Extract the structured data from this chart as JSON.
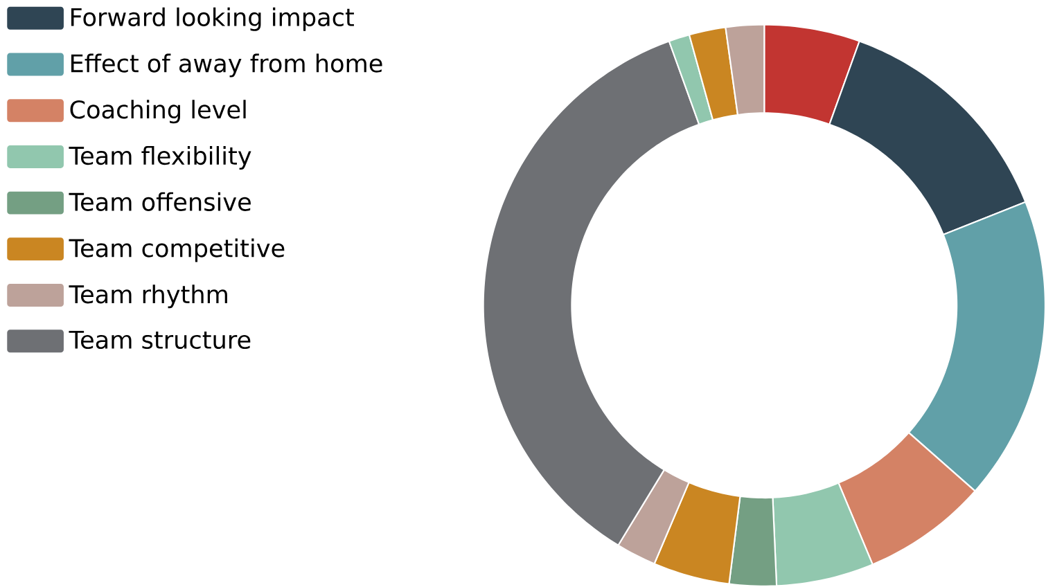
{
  "chart_data": {
    "type": "donut",
    "categories": [
      null,
      "Forward looking impact",
      "Effect of away from home",
      "Coaching level",
      "Team flexibility",
      "Team offensive",
      "Team competitive",
      "Team rhythm",
      "Team structure",
      null,
      null,
      null
    ],
    "values": [
      5.5,
      13.5,
      17.5,
      7.2,
      5.6,
      2.7,
      4.4,
      2.3,
      35.8,
      1.2,
      2.1,
      2.2
    ],
    "colors": [
      "#c23531",
      "#2f4554",
      "#61a0a8",
      "#d48265",
      "#91c7ae",
      "#749f83",
      "#ca8622",
      "#bda29a",
      "#6e7074",
      "#91c7ae",
      "#ca8622",
      "#bda29a"
    ],
    "legend": "left"
  }
}
